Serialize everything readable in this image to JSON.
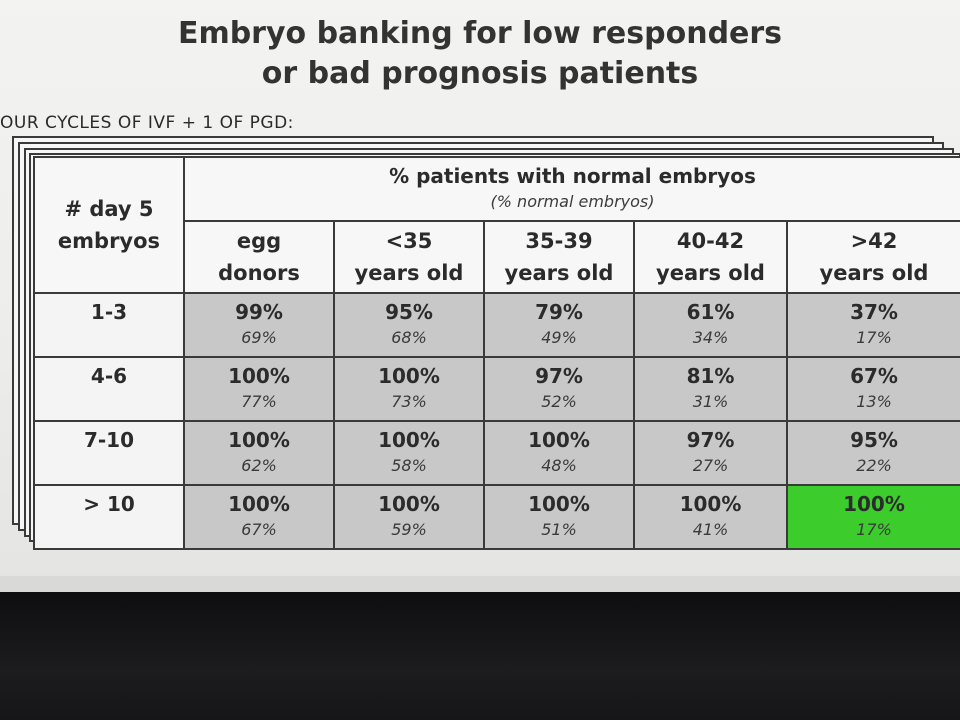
{
  "title": {
    "line1": "Embryo banking for low responders",
    "line2": "or bad prognosis patients"
  },
  "subtitle": "OUR CYCLES OF IVF + 1 OF PGD:",
  "table": {
    "group_title": "% patients with normal embryos",
    "group_subtitle": "(% normal embryos)",
    "row_header": [
      "# day 5",
      "embryos"
    ],
    "columns": [
      {
        "line1": "egg",
        "line2": "donors"
      },
      {
        "line1": "<35",
        "line2": "years old"
      },
      {
        "line1": "35-39",
        "line2": "years old"
      },
      {
        "line1": "40-42",
        "line2": "years old"
      },
      {
        "line1": ">42",
        "line2": "years old"
      }
    ],
    "rows": [
      {
        "label": "1-3",
        "cells": [
          {
            "pct": "99%",
            "sub": "69%"
          },
          {
            "pct": "95%",
            "sub": "68%"
          },
          {
            "pct": "79%",
            "sub": "49%"
          },
          {
            "pct": "61%",
            "sub": "34%"
          },
          {
            "pct": "37%",
            "sub": "17%"
          }
        ]
      },
      {
        "label": "4-6",
        "cells": [
          {
            "pct": "100%",
            "sub": "77%"
          },
          {
            "pct": "100%",
            "sub": "73%"
          },
          {
            "pct": "97%",
            "sub": "52%"
          },
          {
            "pct": "81%",
            "sub": "31%"
          },
          {
            "pct": "67%",
            "sub": "13%"
          }
        ]
      },
      {
        "label": "7-10",
        "cells": [
          {
            "pct": "100%",
            "sub": "62%"
          },
          {
            "pct": "100%",
            "sub": "58%"
          },
          {
            "pct": "100%",
            "sub": "48%"
          },
          {
            "pct": "97%",
            "sub": "27%"
          },
          {
            "pct": "95%",
            "sub": "22%"
          }
        ]
      },
      {
        "label": "> 10",
        "cells": [
          {
            "pct": "100%",
            "sub": "67%"
          },
          {
            "pct": "100%",
            "sub": "59%"
          },
          {
            "pct": "100%",
            "sub": "51%"
          },
          {
            "pct": "100%",
            "sub": "41%"
          },
          {
            "pct": "100%",
            "sub": "17%"
          }
        ]
      }
    ],
    "highlight_color": "#3ccc2c"
  }
}
